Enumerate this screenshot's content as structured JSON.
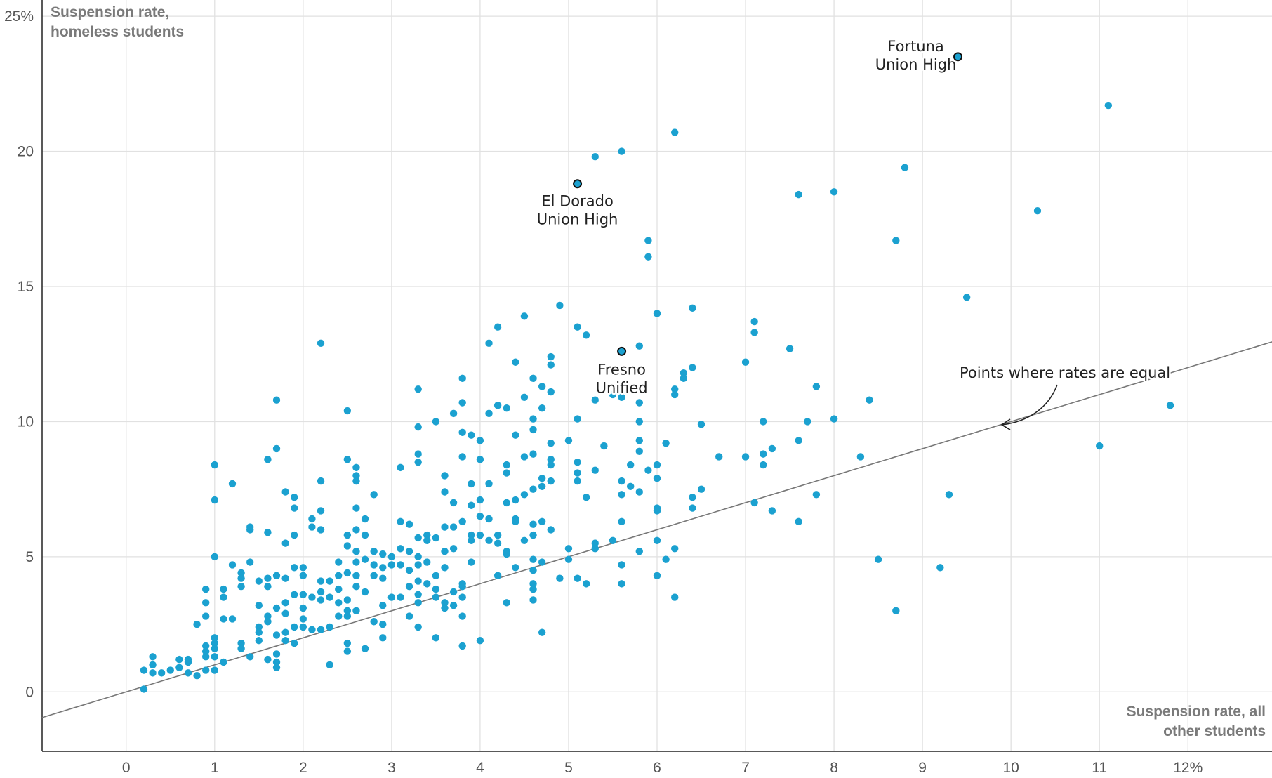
{
  "chart_data": {
    "type": "scatter",
    "title": "",
    "xlabel": "Suspension rate, all other students",
    "ylabel": "Suspension rate, homeless students",
    "xlim": [
      -0.95,
      12.95
    ],
    "ylim": [
      -2.2,
      25.6
    ],
    "x_ticks": [
      0,
      1,
      2,
      3,
      4,
      5,
      6,
      7,
      8,
      9,
      10,
      11,
      12
    ],
    "x_tick_labels": [
      "0",
      "1",
      "2",
      "3",
      "4",
      "5",
      "6",
      "7",
      "8",
      "9",
      "10",
      "11",
      "12%"
    ],
    "y_ticks": [
      0,
      5,
      10,
      15,
      20,
      25
    ],
    "y_tick_labels": [
      "0",
      "5",
      "10",
      "15",
      "20",
      "25%"
    ],
    "grid": true,
    "point_color": "#1ba1d0",
    "reference_line": {
      "label": "Points where rates are equal",
      "slope": 1,
      "intercept": 0,
      "color": "#777777"
    },
    "highlighted": [
      {
        "label_lines": [
          "Fortuna",
          "Union High"
        ],
        "x": 9.4,
        "y": 23.5
      },
      {
        "label_lines": [
          "El Dorado",
          "Union High"
        ],
        "x": 5.1,
        "y": 18.8
      },
      {
        "label_lines": [
          "Fresno",
          "Unified"
        ],
        "x": 5.6,
        "y": 12.6
      }
    ],
    "points": [
      [
        0.2,
        0.8
      ],
      [
        0.2,
        0.1
      ],
      [
        0.3,
        1.3
      ],
      [
        0.3,
        1.0
      ],
      [
        0.3,
        0.7
      ],
      [
        0.4,
        0.7
      ],
      [
        0.5,
        0.8
      ],
      [
        0.6,
        1.2
      ],
      [
        0.6,
        0.9
      ],
      [
        0.7,
        1.2
      ],
      [
        0.7,
        1.1
      ],
      [
        0.7,
        0.7
      ],
      [
        0.8,
        0.6
      ],
      [
        0.8,
        2.5
      ],
      [
        0.9,
        3.8
      ],
      [
        0.9,
        3.3
      ],
      [
        0.9,
        2.8
      ],
      [
        0.9,
        1.7
      ],
      [
        0.9,
        1.5
      ],
      [
        0.9,
        1.3
      ],
      [
        0.9,
        0.8
      ],
      [
        1.0,
        8.4
      ],
      [
        1.0,
        7.1
      ],
      [
        1.0,
        5.0
      ],
      [
        1.0,
        2.0
      ],
      [
        1.0,
        1.8
      ],
      [
        1.0,
        1.6
      ],
      [
        1.0,
        1.3
      ],
      [
        1.0,
        0.8
      ],
      [
        1.1,
        3.8
      ],
      [
        1.1,
        3.5
      ],
      [
        1.1,
        2.7
      ],
      [
        1.1,
        1.1
      ],
      [
        1.2,
        7.7
      ],
      [
        1.2,
        4.7
      ],
      [
        1.2,
        2.7
      ],
      [
        1.3,
        4.4
      ],
      [
        1.3,
        4.2
      ],
      [
        1.3,
        3.9
      ],
      [
        1.3,
        1.8
      ],
      [
        1.3,
        1.6
      ],
      [
        1.4,
        6.1
      ],
      [
        1.4,
        6.0
      ],
      [
        1.4,
        4.8
      ],
      [
        1.4,
        1.3
      ],
      [
        1.5,
        4.1
      ],
      [
        1.5,
        3.2
      ],
      [
        1.5,
        2.4
      ],
      [
        1.5,
        2.2
      ],
      [
        1.5,
        1.9
      ],
      [
        1.6,
        8.6
      ],
      [
        1.6,
        5.9
      ],
      [
        1.6,
        4.2
      ],
      [
        1.6,
        3.9
      ],
      [
        1.6,
        2.8
      ],
      [
        1.6,
        2.6
      ],
      [
        1.6,
        1.2
      ],
      [
        1.7,
        10.8
      ],
      [
        1.7,
        9.0
      ],
      [
        1.7,
        4.3
      ],
      [
        1.7,
        3.1
      ],
      [
        1.7,
        2.1
      ],
      [
        1.7,
        1.4
      ],
      [
        1.7,
        1.1
      ],
      [
        1.7,
        0.9
      ],
      [
        1.8,
        7.4
      ],
      [
        1.8,
        5.5
      ],
      [
        1.8,
        4.2
      ],
      [
        1.8,
        3.3
      ],
      [
        1.8,
        2.9
      ],
      [
        1.8,
        2.2
      ],
      [
        1.8,
        1.9
      ],
      [
        1.9,
        7.2
      ],
      [
        1.9,
        6.8
      ],
      [
        1.9,
        5.8
      ],
      [
        1.9,
        4.6
      ],
      [
        1.9,
        3.6
      ],
      [
        1.9,
        2.4
      ],
      [
        1.9,
        1.8
      ],
      [
        2.0,
        4.6
      ],
      [
        2.0,
        4.3
      ],
      [
        2.0,
        3.6
      ],
      [
        2.0,
        3.1
      ],
      [
        2.0,
        2.7
      ],
      [
        2.0,
        2.4
      ],
      [
        2.1,
        6.4
      ],
      [
        2.1,
        6.1
      ],
      [
        2.1,
        3.5
      ],
      [
        2.1,
        2.3
      ],
      [
        2.2,
        12.9
      ],
      [
        2.2,
        7.8
      ],
      [
        2.2,
        6.7
      ],
      [
        2.2,
        6.0
      ],
      [
        2.2,
        4.1
      ],
      [
        2.2,
        3.7
      ],
      [
        2.2,
        3.4
      ],
      [
        2.2,
        2.3
      ],
      [
        2.3,
        4.1
      ],
      [
        2.3,
        3.5
      ],
      [
        2.3,
        2.4
      ],
      [
        2.3,
        1.0
      ],
      [
        2.4,
        4.8
      ],
      [
        2.4,
        4.3
      ],
      [
        2.4,
        3.8
      ],
      [
        2.4,
        3.3
      ],
      [
        2.4,
        2.8
      ],
      [
        2.5,
        10.4
      ],
      [
        2.5,
        8.6
      ],
      [
        2.5,
        5.8
      ],
      [
        2.5,
        5.4
      ],
      [
        2.5,
        4.4
      ],
      [
        2.5,
        3.4
      ],
      [
        2.5,
        3.0
      ],
      [
        2.5,
        2.8
      ],
      [
        2.5,
        1.8
      ],
      [
        2.5,
        1.5
      ],
      [
        2.6,
        8.3
      ],
      [
        2.6,
        8.0
      ],
      [
        2.6,
        7.8
      ],
      [
        2.6,
        6.8
      ],
      [
        2.6,
        6.0
      ],
      [
        2.6,
        5.2
      ],
      [
        2.6,
        4.8
      ],
      [
        2.6,
        4.3
      ],
      [
        2.6,
        3.9
      ],
      [
        2.6,
        3.0
      ],
      [
        2.7,
        6.4
      ],
      [
        2.7,
        5.8
      ],
      [
        2.7,
        4.9
      ],
      [
        2.7,
        3.7
      ],
      [
        2.7,
        1.6
      ],
      [
        2.8,
        7.3
      ],
      [
        2.8,
        5.2
      ],
      [
        2.8,
        4.7
      ],
      [
        2.8,
        4.3
      ],
      [
        2.8,
        2.6
      ],
      [
        2.9,
        5.1
      ],
      [
        2.9,
        4.6
      ],
      [
        2.9,
        4.2
      ],
      [
        2.9,
        3.2
      ],
      [
        2.9,
        2.5
      ],
      [
        2.9,
        2.0
      ],
      [
        3.0,
        5.0
      ],
      [
        3.0,
        4.7
      ],
      [
        3.0,
        3.5
      ],
      [
        3.1,
        8.3
      ],
      [
        3.1,
        6.3
      ],
      [
        3.1,
        5.3
      ],
      [
        3.1,
        4.7
      ],
      [
        3.1,
        3.5
      ],
      [
        3.2,
        6.2
      ],
      [
        3.2,
        5.2
      ],
      [
        3.2,
        4.5
      ],
      [
        3.2,
        3.9
      ],
      [
        3.2,
        2.8
      ],
      [
        3.3,
        11.2
      ],
      [
        3.3,
        9.8
      ],
      [
        3.3,
        8.8
      ],
      [
        3.3,
        8.5
      ],
      [
        3.3,
        5.7
      ],
      [
        3.3,
        5.0
      ],
      [
        3.3,
        4.7
      ],
      [
        3.3,
        4.1
      ],
      [
        3.3,
        3.6
      ],
      [
        3.3,
        3.3
      ],
      [
        3.3,
        2.4
      ],
      [
        3.4,
        5.8
      ],
      [
        3.4,
        5.6
      ],
      [
        3.4,
        4.8
      ],
      [
        3.4,
        4.0
      ],
      [
        3.5,
        10.0
      ],
      [
        3.5,
        5.7
      ],
      [
        3.5,
        4.3
      ],
      [
        3.5,
        3.8
      ],
      [
        3.5,
        3.5
      ],
      [
        3.5,
        2.0
      ],
      [
        3.6,
        8.0
      ],
      [
        3.6,
        7.4
      ],
      [
        3.6,
        6.1
      ],
      [
        3.6,
        5.2
      ],
      [
        3.6,
        4.6
      ],
      [
        3.6,
        3.3
      ],
      [
        3.6,
        3.1
      ],
      [
        3.7,
        10.3
      ],
      [
        3.7,
        7.0
      ],
      [
        3.7,
        6.1
      ],
      [
        3.7,
        5.3
      ],
      [
        3.7,
        3.7
      ],
      [
        3.7,
        3.2
      ],
      [
        3.8,
        11.6
      ],
      [
        3.8,
        10.7
      ],
      [
        3.8,
        9.6
      ],
      [
        3.8,
        8.7
      ],
      [
        3.8,
        6.3
      ],
      [
        3.8,
        4.0
      ],
      [
        3.8,
        3.9
      ],
      [
        3.8,
        3.5
      ],
      [
        3.8,
        2.8
      ],
      [
        3.8,
        1.7
      ],
      [
        3.9,
        9.5
      ],
      [
        3.9,
        7.7
      ],
      [
        3.9,
        6.9
      ],
      [
        3.9,
        5.8
      ],
      [
        3.9,
        5.6
      ],
      [
        3.9,
        4.8
      ],
      [
        4.0,
        9.3
      ],
      [
        4.0,
        8.6
      ],
      [
        4.0,
        7.1
      ],
      [
        4.0,
        6.5
      ],
      [
        4.0,
        5.8
      ],
      [
        4.0,
        1.9
      ],
      [
        4.1,
        12.9
      ],
      [
        4.1,
        10.3
      ],
      [
        4.1,
        7.7
      ],
      [
        4.1,
        6.4
      ],
      [
        4.1,
        5.6
      ],
      [
        4.2,
        13.5
      ],
      [
        4.2,
        10.6
      ],
      [
        4.2,
        5.8
      ],
      [
        4.2,
        5.5
      ],
      [
        4.2,
        4.3
      ],
      [
        4.3,
        10.5
      ],
      [
        4.3,
        8.4
      ],
      [
        4.3,
        8.1
      ],
      [
        4.3,
        7.0
      ],
      [
        4.3,
        5.2
      ],
      [
        4.3,
        5.1
      ],
      [
        4.3,
        3.3
      ],
      [
        4.4,
        12.2
      ],
      [
        4.4,
        9.5
      ],
      [
        4.4,
        7.1
      ],
      [
        4.4,
        6.4
      ],
      [
        4.4,
        6.3
      ],
      [
        4.4,
        4.6
      ],
      [
        4.5,
        13.9
      ],
      [
        4.5,
        10.9
      ],
      [
        4.5,
        8.7
      ],
      [
        4.5,
        7.3
      ],
      [
        4.5,
        5.6
      ],
      [
        4.6,
        11.6
      ],
      [
        4.6,
        10.1
      ],
      [
        4.6,
        9.7
      ],
      [
        4.6,
        8.8
      ],
      [
        4.6,
        7.5
      ],
      [
        4.6,
        6.2
      ],
      [
        4.6,
        5.8
      ],
      [
        4.6,
        4.9
      ],
      [
        4.6,
        4.5
      ],
      [
        4.6,
        4.0
      ],
      [
        4.6,
        3.8
      ],
      [
        4.6,
        3.4
      ],
      [
        4.7,
        11.3
      ],
      [
        4.7,
        10.5
      ],
      [
        4.7,
        7.9
      ],
      [
        4.7,
        7.6
      ],
      [
        4.7,
        6.3
      ],
      [
        4.7,
        4.8
      ],
      [
        4.7,
        2.2
      ],
      [
        4.8,
        12.4
      ],
      [
        4.8,
        12.1
      ],
      [
        4.8,
        11.1
      ],
      [
        4.8,
        9.2
      ],
      [
        4.8,
        8.6
      ],
      [
        4.8,
        8.4
      ],
      [
        4.8,
        7.8
      ],
      [
        4.8,
        6.0
      ],
      [
        4.9,
        14.3
      ],
      [
        4.9,
        4.2
      ],
      [
        5.0,
        9.3
      ],
      [
        5.0,
        5.3
      ],
      [
        5.0,
        4.9
      ],
      [
        5.1,
        13.5
      ],
      [
        5.1,
        10.1
      ],
      [
        5.1,
        8.5
      ],
      [
        5.1,
        8.1
      ],
      [
        5.1,
        7.8
      ],
      [
        5.1,
        4.2
      ],
      [
        5.2,
        13.2
      ],
      [
        5.2,
        7.2
      ],
      [
        5.2,
        4.0
      ],
      [
        5.3,
        19.8
      ],
      [
        5.3,
        10.8
      ],
      [
        5.3,
        8.2
      ],
      [
        5.3,
        5.5
      ],
      [
        5.3,
        5.3
      ],
      [
        5.4,
        9.1
      ],
      [
        5.5,
        11.0
      ],
      [
        5.5,
        5.6
      ],
      [
        5.6,
        20.0
      ],
      [
        5.6,
        10.9
      ],
      [
        5.6,
        7.8
      ],
      [
        5.6,
        7.3
      ],
      [
        5.6,
        6.3
      ],
      [
        5.6,
        4.7
      ],
      [
        5.6,
        4.0
      ],
      [
        5.7,
        8.4
      ],
      [
        5.7,
        7.6
      ],
      [
        5.8,
        12.8
      ],
      [
        5.8,
        10.7
      ],
      [
        5.8,
        10.0
      ],
      [
        5.8,
        9.3
      ],
      [
        5.8,
        8.9
      ],
      [
        5.8,
        7.4
      ],
      [
        5.8,
        5.2
      ],
      [
        5.9,
        16.7
      ],
      [
        5.9,
        16.1
      ],
      [
        5.9,
        8.2
      ],
      [
        6.0,
        14.0
      ],
      [
        6.0,
        8.4
      ],
      [
        6.0,
        7.9
      ],
      [
        6.0,
        6.8
      ],
      [
        6.0,
        6.7
      ],
      [
        6.0,
        5.6
      ],
      [
        6.0,
        4.3
      ],
      [
        6.1,
        9.2
      ],
      [
        6.1,
        4.9
      ],
      [
        6.2,
        20.7
      ],
      [
        6.2,
        11.2
      ],
      [
        6.2,
        11.0
      ],
      [
        6.2,
        5.3
      ],
      [
        6.2,
        3.5
      ],
      [
        6.3,
        11.8
      ],
      [
        6.3,
        11.6
      ],
      [
        6.4,
        14.2
      ],
      [
        6.4,
        12.0
      ],
      [
        6.4,
        7.2
      ],
      [
        6.4,
        6.8
      ],
      [
        6.5,
        9.9
      ],
      [
        6.5,
        7.5
      ],
      [
        6.7,
        8.7
      ],
      [
        7.0,
        12.2
      ],
      [
        7.0,
        8.7
      ],
      [
        7.1,
        13.7
      ],
      [
        7.1,
        13.3
      ],
      [
        7.1,
        7.0
      ],
      [
        7.2,
        10.0
      ],
      [
        7.2,
        8.8
      ],
      [
        7.2,
        8.4
      ],
      [
        7.3,
        9.0
      ],
      [
        7.3,
        6.7
      ],
      [
        7.5,
        12.7
      ],
      [
        7.6,
        18.4
      ],
      [
        7.6,
        9.3
      ],
      [
        7.6,
        6.3
      ],
      [
        7.7,
        10.0
      ],
      [
        7.8,
        11.3
      ],
      [
        7.8,
        7.3
      ],
      [
        8.0,
        18.5
      ],
      [
        8.0,
        10.1
      ],
      [
        8.3,
        8.7
      ],
      [
        8.4,
        10.8
      ],
      [
        8.5,
        4.9
      ],
      [
        8.7,
        16.7
      ],
      [
        8.7,
        3.0
      ],
      [
        8.8,
        19.4
      ],
      [
        9.2,
        4.6
      ],
      [
        9.3,
        7.3
      ],
      [
        9.5,
        14.6
      ],
      [
        10.3,
        17.8
      ],
      [
        11.0,
        9.1
      ],
      [
        11.1,
        21.7
      ],
      [
        11.8,
        10.6
      ]
    ]
  }
}
